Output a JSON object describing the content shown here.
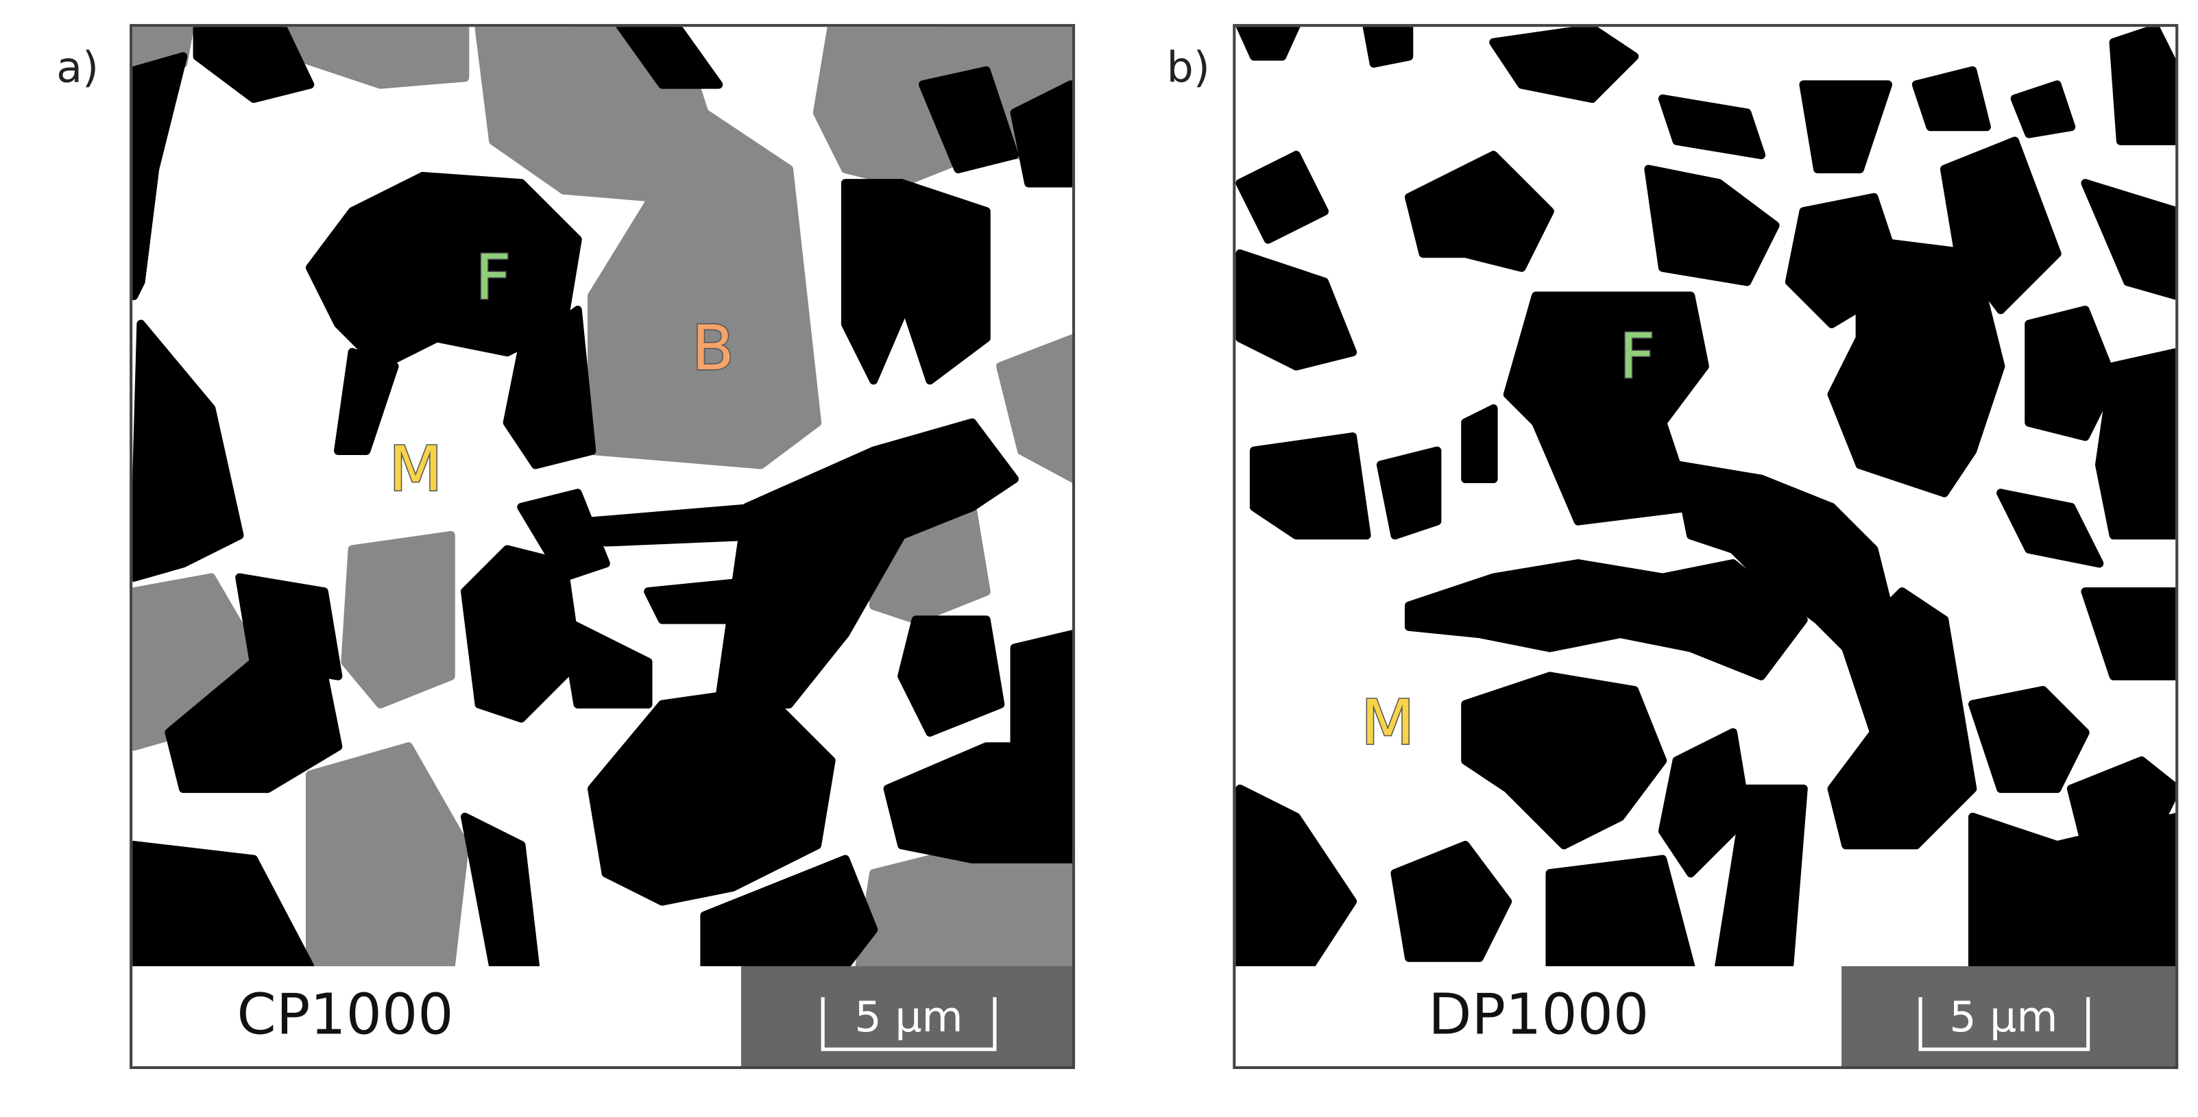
{
  "panels": [
    {
      "label": "a)",
      "caption": "CP1000",
      "scale_bar": "5 µm",
      "phases": [
        "F",
        "B",
        "M"
      ]
    },
    {
      "label": "b)",
      "caption": "DP1000",
      "scale_bar": "5 µm",
      "phases": [
        "F",
        "M"
      ]
    }
  ]
}
